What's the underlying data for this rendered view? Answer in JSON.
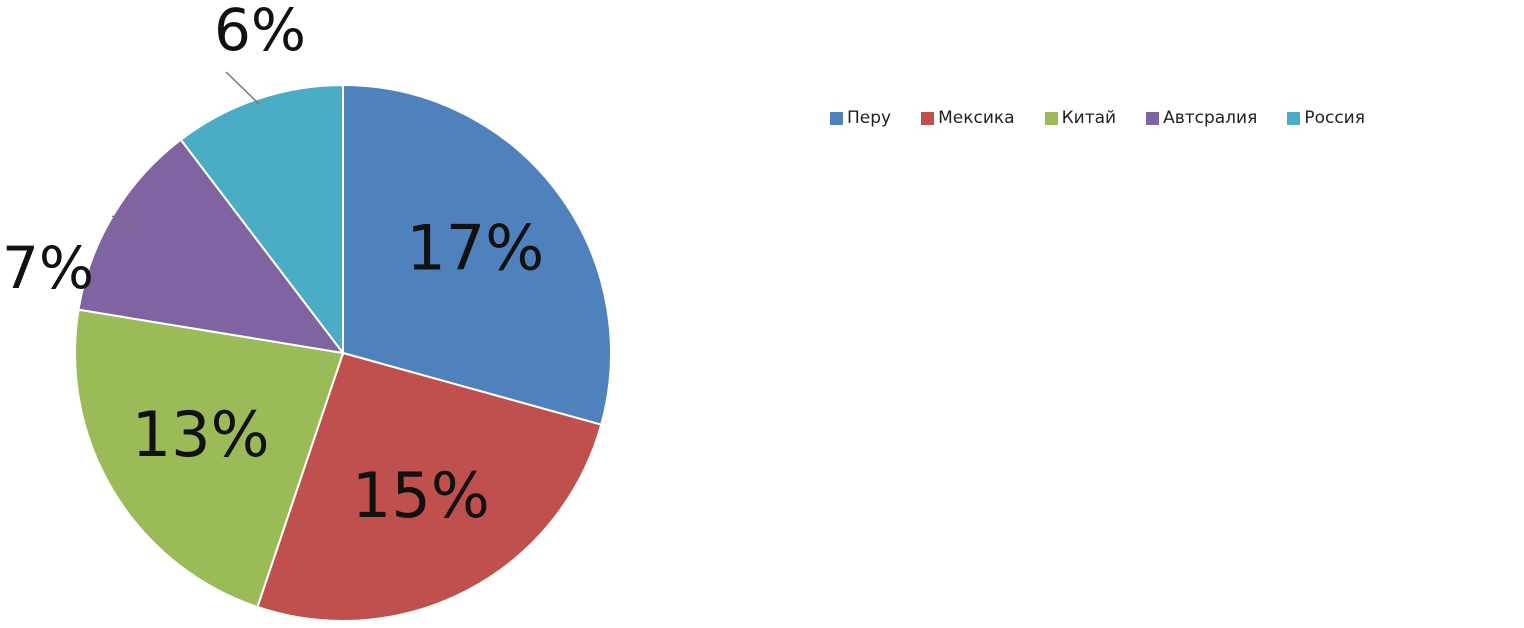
{
  "chart_data": {
    "type": "pie",
    "title": "",
    "categories": [
      "Перу",
      "Мексика",
      "Китай",
      "Автсралия",
      "Россия"
    ],
    "values": [
      17,
      15,
      13,
      7,
      6
    ],
    "labels": [
      "17%",
      "15%",
      "13%",
      "7%",
      "6%"
    ],
    "colors": [
      "#4f81bd",
      "#c0504d",
      "#9bbb59",
      "#8064a2",
      "#4bacc6"
    ],
    "legend_position": "top-right",
    "start_angle_deg": 0,
    "direction": "clockwise"
  }
}
